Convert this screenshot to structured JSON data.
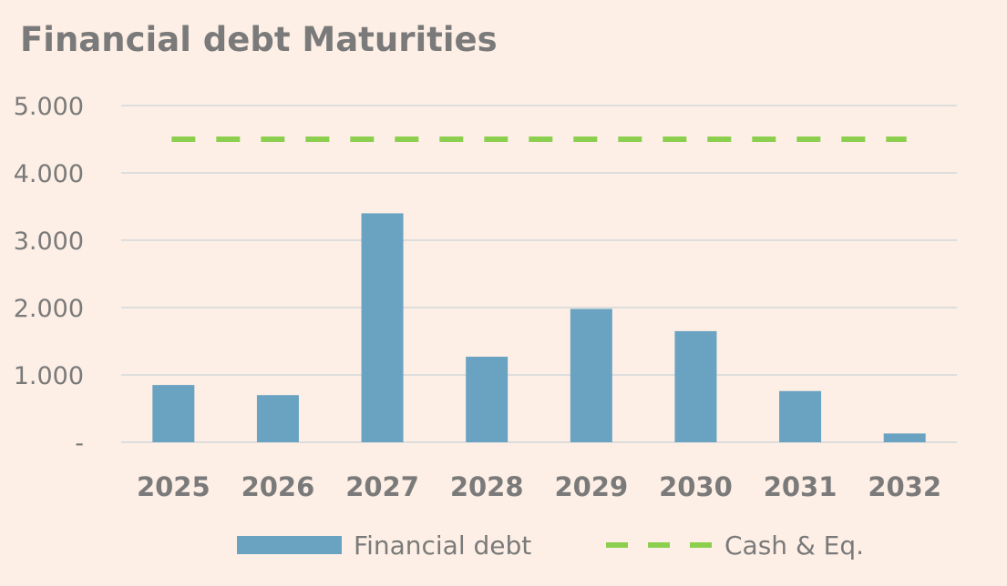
{
  "colors": {
    "background": "#fdefe5",
    "bar": "#6aa3c2",
    "cash_line": "#8ccf4f",
    "grid": "#dddddd",
    "text": "#7a7a7a"
  },
  "chart_data": {
    "type": "bar",
    "title": "Financial debt Maturities",
    "categories": [
      "2025",
      "2026",
      "2027",
      "2028",
      "2029",
      "2030",
      "2031",
      "2032"
    ],
    "series": [
      {
        "name": "Financial debt",
        "type": "bar",
        "values": [
          850,
          700,
          3400,
          1270,
          1980,
          1650,
          760,
          130
        ]
      },
      {
        "name": "Cash & Eq.",
        "type": "line",
        "style": "dashed",
        "values": [
          4500,
          4500,
          4500,
          4500,
          4500,
          4500,
          4500,
          4500
        ]
      }
    ],
    "ylim": [
      0,
      5000
    ],
    "yticks": [
      {
        "value": 0,
        "label": "-"
      },
      {
        "value": 1000,
        "label": "1.000"
      },
      {
        "value": 2000,
        "label": "2.000"
      },
      {
        "value": 3000,
        "label": "3.000"
      },
      {
        "value": 4000,
        "label": "4.000"
      },
      {
        "value": 5000,
        "label": "5.000"
      }
    ],
    "grid": true,
    "legend_position": "bottom"
  }
}
